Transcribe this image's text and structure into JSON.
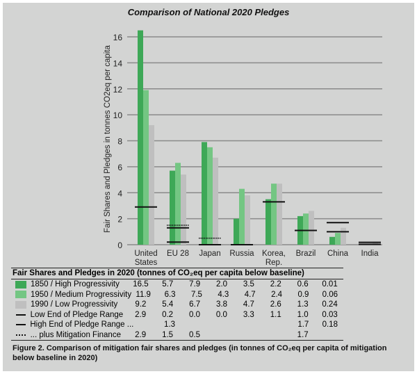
{
  "chart_data": {
    "type": "bar",
    "title": "Comparison of National 2020 Pledges",
    "ylabel": "Fair Shares and Pledges in tonnes CO2eq per capita",
    "xlabel": "",
    "ylim": [
      0,
      16
    ],
    "yticks": [
      "0",
      "2",
      "4",
      "6",
      "8",
      "10",
      "12",
      "14",
      "16"
    ],
    "grid": true,
    "categories": [
      "United States",
      "EU 28",
      "Japan",
      "Russia",
      "Korea, Rep.",
      "Brazil",
      "China",
      "India"
    ],
    "category_lines": [
      [
        "United",
        "States"
      ],
      [
        "EU 28"
      ],
      [
        "Japan"
      ],
      [
        "Russia"
      ],
      [
        "Korea,",
        "Rep."
      ],
      [
        "Brazil"
      ],
      [
        "China"
      ],
      [
        "India"
      ]
    ],
    "series": [
      {
        "name": "1850 / High Progressivity",
        "kind": "bar",
        "color": "#3ea857",
        "values": [
          16.5,
          5.7,
          7.9,
          2.0,
          3.5,
          2.2,
          0.6,
          0.01
        ],
        "labels": [
          "16.5",
          "5.7",
          "7.9",
          "2.0",
          "3.5",
          "2.2",
          "0.6",
          "0.01"
        ]
      },
      {
        "name": "1950 / Medium Progressivity",
        "kind": "bar",
        "color": "#74c683",
        "values": [
          11.9,
          6.3,
          7.5,
          4.3,
          4.7,
          2.4,
          0.9,
          0.06
        ],
        "labels": [
          "11.9",
          "6.3",
          "7.5",
          "4.3",
          "4.7",
          "2.4",
          "0.9",
          "0.06"
        ]
      },
      {
        "name": "1990 / Low Progressivity",
        "kind": "bar",
        "color": "#bfbfbf",
        "values": [
          9.2,
          5.4,
          6.7,
          3.8,
          4.7,
          2.6,
          1.3,
          0.24
        ],
        "labels": [
          "9.2",
          "5.4",
          "6.7",
          "3.8",
          "4.7",
          "2.6",
          "1.3",
          "0.24"
        ]
      },
      {
        "name": "Low End of Pledge Range",
        "kind": "line",
        "color": "#111111",
        "values": [
          2.9,
          0.2,
          0.0,
          0.0,
          3.3,
          1.1,
          1.0,
          0.03
        ],
        "labels": [
          "2.9",
          "0.2",
          "0.0",
          "0.0",
          "3.3",
          "1.1",
          "1.0",
          "0.03"
        ]
      },
      {
        "name": "High End of Pledge Range ...",
        "kind": "line",
        "color": "#111111",
        "values": [
          null,
          1.3,
          null,
          null,
          null,
          null,
          1.7,
          0.18
        ],
        "labels": [
          "",
          "1.3",
          "",
          "",
          "",
          "",
          "1.7",
          "0.18"
        ]
      },
      {
        "name": "... plus Mitigation Finance",
        "kind": "dotted",
        "color": "#111111",
        "values": [
          2.9,
          1.5,
          0.5,
          null,
          null,
          null,
          1.7,
          null
        ],
        "labels": [
          "2.9",
          "1.5",
          "0.5",
          "",
          "",
          "",
          "1.7",
          ""
        ]
      }
    ]
  },
  "table": {
    "heading": "Fair Shares and Pledges in 2020 (tonnes of CO₂eq per capita below baseline)"
  },
  "caption": "Figure 2. Comparison of mitigation fair shares and pledges (in tonnes of CO₂eq per capita of mitigation below baseline in 2020)"
}
